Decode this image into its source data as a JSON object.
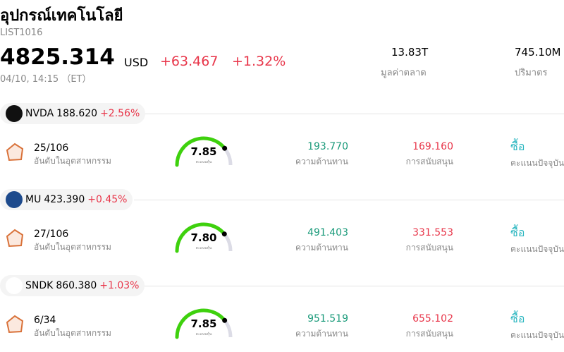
{
  "header": {
    "title": "อุปกรณ์เทคโนโลยี",
    "code": "LIST1016",
    "price": "4825.314",
    "currency": "USD",
    "change": "+63.467",
    "change_pct": "+1.32%",
    "time": "04/10, 14:15 （ET）",
    "stats": [
      {
        "value": "13.83T",
        "label": "มูลค่าตลาด"
      },
      {
        "value": "745.10M",
        "label": "ปริมาตร"
      }
    ]
  },
  "stocks": [
    {
      "ticker": "NVDA",
      "price": "188.620",
      "change": "+2.56%",
      "rank": "25/106",
      "rank_label": "อันดับในอุตสาหกรรม",
      "score": "7.85",
      "score_label": "คะแนนหุ้น",
      "resistance": "193.770",
      "resistance_label": "ความต้านทาน",
      "support": "169.160",
      "support_label": "การสนับสนุน",
      "rating": "ซื้อ",
      "rating_label": "คะแนนปัจจุบัน"
    },
    {
      "ticker": "MU",
      "price": "423.390",
      "change": "+0.45%",
      "rank": "27/106",
      "rank_label": "อันดับในอุตสาหกรรม",
      "score": "7.80",
      "score_label": "คะแนนหุ้น",
      "resistance": "491.403",
      "resistance_label": "ความต้านทาน",
      "support": "331.553",
      "support_label": "การสนับสนุน",
      "rating": "ซื้อ",
      "rating_label": "คะแนนปัจจุบัน"
    },
    {
      "ticker": "SNDK",
      "price": "860.380",
      "change": "+1.03%",
      "rank": "6/34",
      "rank_label": "อันดับในอุตสาหกรรม",
      "score": "7.85",
      "score_label": "คะแนนหุ้น",
      "resistance": "951.519",
      "resistance_label": "ความต้านทาน",
      "support": "655.102",
      "support_label": "การสนับสนุน",
      "rating": "ซื้อ",
      "rating_label": "คะแนนปัจจุบัน"
    }
  ]
}
